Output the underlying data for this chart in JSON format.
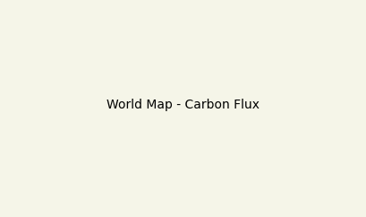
{
  "title": "",
  "background_color": "#f5f5e8",
  "ocean_color": "#ffffff",
  "border_color": "#333333",
  "border_linewidth": 0.3,
  "country_colors": {
    "United States of America": "#1a1aaa",
    "Canada": "#aaaadd",
    "Mexico": "#ffaacc",
    "Guatemala": "#ffaacc",
    "Belize": "#ffaacc",
    "Honduras": "#ffaacc",
    "El Salvador": "#ffaacc",
    "Nicaragua": "#ffaacc",
    "Costa Rica": "#ffaacc",
    "Panama": "#ffaacc",
    "Cuba": "#ffaacc",
    "Haiti": "#ffaacc",
    "Dominican Rep.": "#ffaacc",
    "Jamaica": "#ffaacc",
    "Trinidad and Tobago": "#ffaacc",
    "Puerto Rico": "#ffaacc",
    "Colombia": "#ff44cc",
    "Venezuela": "#ffaacc",
    "Guyana": "#ffaacc",
    "Suriname": "#ffaacc",
    "Fr. Guiana": "#ffaacc",
    "Ecuador": "#ffaacc",
    "Peru": "#ffaacc",
    "Bolivia": "#ffaacc",
    "Brazil": "#660044",
    "Chile": "#ffaacc",
    "Argentina": "#ffaacc",
    "Uruguay": "#ffaacc",
    "Paraguay": "#ff44cc",
    "Greenland": "#aaaadd",
    "Iceland": "#aaaadd",
    "Norway": "#aaaadd",
    "Sweden": "#aaaadd",
    "Finland": "#aaaadd",
    "Denmark": "#aaaadd",
    "United Kingdom": "#aaaadd",
    "Ireland": "#aaaadd",
    "Netherlands": "#ffffff",
    "Belgium": "#ffffff",
    "Luxembourg": "#ffffff",
    "France": "#ffffff",
    "Spain": "#8888cc",
    "Portugal": "#ffffff",
    "Germany": "#ffffff",
    "Switzerland": "#ffffff",
    "Austria": "#ffffff",
    "Italy": "#ffffff",
    "Czech Rep.": "#ffffff",
    "Slovakia": "#ffffff",
    "Poland": "#ffffff",
    "Hungary": "#ffffff",
    "Romania": "#ffaacc",
    "Bulgaria": "#ffffff",
    "Greece": "#ffffff",
    "Albania": "#ffffff",
    "Serbia": "#ffffff",
    "Croatia": "#ffffff",
    "Bosnia and Herz.": "#ffffff",
    "Slovenia": "#ffffff",
    "Macedonia": "#ffffff",
    "Montenegro": "#ffffff",
    "Kosovo": "#ffffff",
    "Estonia": "#ffffff",
    "Latvia": "#ffffff",
    "Lithuania": "#ffffff",
    "Belarus": "#aaaadd",
    "Ukraine": "#aaaadd",
    "Moldova": "#ffffff",
    "Russia": "#ff00cc",
    "Kazakhstan": "#888888",
    "Uzbekistan": "#888888",
    "Turkmenistan": "#888888",
    "Kyrgyzstan": "#888888",
    "Tajikistan": "#888888",
    "Azerbaijan": "#888888",
    "Armenia": "#888888",
    "Georgia": "#888888",
    "Turkey": "#ffaacc",
    "Syria": "#ffaacc",
    "Lebanon": "#ffffff",
    "Israel": "#ffffff",
    "Jordan": "#ffaacc",
    "Iraq": "#ffaacc",
    "Iran": "#ffaacc",
    "Saudi Arabia": "#ffaacc",
    "Yemen": "#ffaacc",
    "Oman": "#ffaacc",
    "United Arab Emirates": "#ffaacc",
    "Qatar": "#ffaacc",
    "Kuwait": "#ffaacc",
    "Bahrain": "#ffaacc",
    "Afghanistan": "#ffaacc",
    "Pakistan": "#ffaacc",
    "India": "#2222cc",
    "Nepal": "#ffaacc",
    "Bhutan": "#ffaacc",
    "Bangladesh": "#ffaacc",
    "Sri Lanka": "#ffaacc",
    "Myanmar": "#ff44cc",
    "Thailand": "#ff44cc",
    "Laos": "#ff44cc",
    "Cambodia": "#ff44cc",
    "Vietnam": "#660044",
    "Malaysia": "#660044",
    "Indonesia": "#660044",
    "Philippines": "#ffaacc",
    "Papua New Guinea": "#ffaacc",
    "China": "#660044",
    "Mongolia": "#888888",
    "North Korea": "#ffaacc",
    "South Korea": "#ffaacc",
    "Japan": "#ffaacc",
    "Taiwan": "#ffaacc",
    "Timor-Leste": "#ffaacc",
    "Brunei": "#ffaacc",
    "Singapore": "#ffaacc",
    "Morocco": "#ffaacc",
    "Algeria": "#888888",
    "Tunisia": "#ffaacc",
    "Libya": "#888888",
    "Egypt": "#888888",
    "Mauritania": "#888888",
    "Mali": "#888888",
    "Niger": "#888888",
    "Chad": "#888888",
    "Sudan": "#888888",
    "Ethiopia": "#ff44cc",
    "Eritrea": "#ffaacc",
    "Djibouti": "#ffaacc",
    "Somalia": "#ffaacc",
    "Kenya": "#ffaacc",
    "Uganda": "#ff44cc",
    "Tanzania": "#ff44cc",
    "Rwanda": "#ffaacc",
    "Burundi": "#ffaacc",
    "Mozambique": "#ffaacc",
    "Zimbabwe": "#ffaacc",
    "Zambia": "#ffaacc",
    "Malawi": "#ffaacc",
    "Angola": "#ffaacc",
    "Democratic Republic of the Congo": "#ff00cc",
    "Republic of Congo": "#ff44cc",
    "Central African Rep.": "#ff44cc",
    "Cameroon": "#ff44cc",
    "Nigeria": "#ff00cc",
    "Benin": "#ffaacc",
    "Ghana": "#ff44cc",
    "Togo": "#ffaacc",
    "Ivory Coast": "#ff44cc",
    "Liberia": "#ff44cc",
    "Sierra Leone": "#ffaacc",
    "Guinea": "#ffaacc",
    "Guinea-Bissau": "#ffaacc",
    "Senegal": "#ffaacc",
    "Gambia": "#ffaacc",
    "Burkina Faso": "#888888",
    "South Africa": "#ffaacc",
    "Namibia": "#ffaacc",
    "Botswana": "#888888",
    "Lesotho": "#ffaacc",
    "Swaziland": "#ffaacc",
    "Madagascar": "#ffaacc",
    "Gabon": "#ff44cc",
    "Equatorial Guinea": "#ffaacc",
    "São Tomé and Príncipe": "#ffaacc",
    "Cape Verde": "#ffaacc",
    "Comoros": "#ffaacc",
    "Mauritius": "#ffaacc",
    "Australia": "#ffaacc",
    "New Zealand": "#aaaadd",
    "Fiji": "#ffaacc",
    "S. Sudan": "#ffaacc",
    "W. Sahara": "#888888",
    "Somaliland": "#ffaacc"
  },
  "default_color": "#ffaacc",
  "figsize": [
    4.09,
    2.42
  ],
  "dpi": 100
}
